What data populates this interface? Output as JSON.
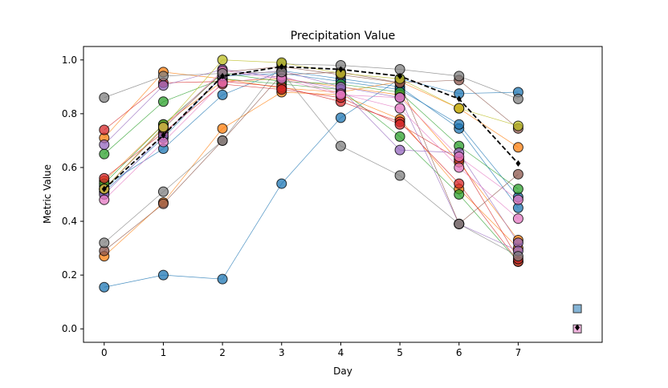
{
  "chart_data": {
    "type": "line",
    "title": "Precipitation Value",
    "xlabel": "Day",
    "ylabel": "Metric Value",
    "xlim": [
      -0.35,
      8.42
    ],
    "ylim": [
      -0.05,
      1.05
    ],
    "x": [
      0,
      1,
      2,
      3,
      4,
      5,
      6,
      7
    ],
    "xticks": [
      "0",
      "1",
      "2",
      "3",
      "4",
      "5",
      "6",
      "7"
    ],
    "yticks": [
      0.0,
      0.2,
      0.4,
      0.6,
      0.8,
      1.0
    ],
    "ytick_labels": [
      "0.0",
      "0.2",
      "0.4",
      "0.6",
      "0.8",
      "1.0"
    ],
    "grid": false,
    "legend": "none",
    "series": [
      {
        "color": "#1f77b4",
        "values": [
          0.155,
          0.2,
          0.185,
          0.54,
          0.785,
          0.93,
          0.875,
          0.88
        ]
      },
      {
        "color": "#1f77b4",
        "values": [
          0.53,
          0.67,
          0.87,
          0.96,
          0.93,
          0.9,
          0.745,
          0.45
        ]
      },
      {
        "color": "#1f77b4",
        "values": [
          0.51,
          0.71,
          0.94,
          0.95,
          0.92,
          0.89,
          0.76,
          0.49
        ]
      },
      {
        "color": "#ff7f0e",
        "values": [
          0.27,
          0.47,
          0.745,
          0.88,
          0.87,
          0.78,
          0.52,
          0.3
        ]
      },
      {
        "color": "#ff7f0e",
        "values": [
          0.71,
          0.955,
          0.93,
          0.895,
          0.88,
          0.92,
          0.82,
          0.675
        ]
      },
      {
        "color": "#ff7f0e",
        "values": [
          0.55,
          0.76,
          0.92,
          0.93,
          0.9,
          0.87,
          0.62,
          0.33
        ]
      },
      {
        "color": "#2ca02c",
        "values": [
          0.65,
          0.845,
          0.93,
          0.91,
          0.89,
          0.715,
          0.5,
          0.25
        ]
      },
      {
        "color": "#2ca02c",
        "values": [
          0.54,
          0.76,
          0.95,
          0.92,
          0.91,
          0.88,
          0.68,
          0.52
        ]
      },
      {
        "color": "#d62728",
        "values": [
          0.74,
          0.915,
          0.92,
          0.9,
          0.845,
          0.77,
          0.54,
          0.25
        ]
      },
      {
        "color": "#d62728",
        "values": [
          0.56,
          0.73,
          0.91,
          0.89,
          0.86,
          0.76,
          0.63,
          0.26
        ]
      },
      {
        "color": "#9467bd",
        "values": [
          0.685,
          0.905,
          0.965,
          0.935,
          0.89,
          0.665,
          0.655,
          0.32
        ]
      },
      {
        "color": "#9467bd",
        "values": [
          0.5,
          0.72,
          0.94,
          0.96,
          0.9,
          0.86,
          0.39,
          0.29
        ]
      },
      {
        "color": "#8c564b",
        "values": [
          0.29,
          0.465,
          0.7,
          0.945,
          0.955,
          0.915,
          0.925,
          0.745
        ]
      },
      {
        "color": "#8c564b",
        "values": [
          0.52,
          0.745,
          0.955,
          0.975,
          0.945,
          0.915,
          0.39,
          0.575
        ]
      },
      {
        "color": "#e377c2",
        "values": [
          0.48,
          0.695,
          0.915,
          0.94,
          0.875,
          0.82,
          0.6,
          0.41
        ]
      },
      {
        "color": "#e377c2",
        "values": [
          0.52,
          0.75,
          0.96,
          0.93,
          0.87,
          0.86,
          0.64,
          0.48
        ]
      },
      {
        "color": "#7f7f7f",
        "values": [
          0.86,
          0.94,
          0.95,
          0.955,
          0.68,
          0.57,
          0.39,
          0.27
        ]
      },
      {
        "color": "#7f7f7f",
        "values": [
          0.32,
          0.51,
          0.7,
          0.985,
          0.98,
          0.965,
          0.94,
          0.855
        ]
      },
      {
        "color": "#bcbd22",
        "values": [
          0.52,
          0.75,
          1.0,
          0.99,
          0.95,
          0.93,
          0.82,
          0.755
        ]
      }
    ],
    "mean_line": {
      "values": [
        0.52,
        0.72,
        0.94,
        0.975,
        0.965,
        0.94,
        0.855,
        0.615
      ],
      "style": "dashed",
      "color": "#000000"
    },
    "extra_markers": [
      {
        "x": 8,
        "y": 0.075,
        "shape": "square",
        "color": "#1f77b4"
      },
      {
        "x": 8,
        "y": 0.0,
        "shape": "square",
        "color": "#e377c2"
      },
      {
        "x": 8,
        "y": 0.005,
        "shape": "diamond",
        "color": "#000000"
      }
    ]
  }
}
